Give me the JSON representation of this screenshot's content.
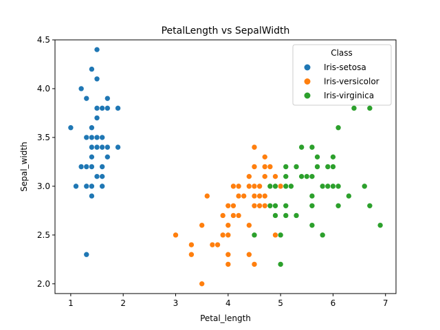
{
  "chart_data": {
    "type": "scatter",
    "title": "PetalLength vs SepalWidth",
    "xlabel": "Petal_length",
    "ylabel": "Sepal_width",
    "xlim": [
      0.7,
      7.2
    ],
    "ylim": [
      1.9,
      4.5
    ],
    "xticks": [
      1,
      2,
      3,
      4,
      5,
      6,
      7
    ],
    "yticks": [
      2.0,
      2.5,
      3.0,
      3.5,
      4.0,
      4.5
    ],
    "xtick_labels": [
      "1",
      "2",
      "3",
      "4",
      "5",
      "6",
      "7"
    ],
    "ytick_labels": [
      "2.0",
      "2.5",
      "3.0",
      "3.5",
      "4.0",
      "4.5"
    ],
    "grid": false,
    "legend": {
      "title": "Class",
      "placement": "top-right"
    },
    "series": [
      {
        "name": "Iris-setosa",
        "color": "#1f77b4",
        "points": [
          [
            1.0,
            3.6
          ],
          [
            1.1,
            3.0
          ],
          [
            1.2,
            3.2
          ],
          [
            1.2,
            4.0
          ],
          [
            1.3,
            3.0
          ],
          [
            1.3,
            3.2
          ],
          [
            1.3,
            3.5
          ],
          [
            1.3,
            3.9
          ],
          [
            1.3,
            2.3
          ],
          [
            1.4,
            2.9
          ],
          [
            1.4,
            3.0
          ],
          [
            1.4,
            3.2
          ],
          [
            1.4,
            3.3
          ],
          [
            1.4,
            3.4
          ],
          [
            1.4,
            3.5
          ],
          [
            1.4,
            3.6
          ],
          [
            1.4,
            4.2
          ],
          [
            1.5,
            3.1
          ],
          [
            1.5,
            3.4
          ],
          [
            1.5,
            3.5
          ],
          [
            1.5,
            3.7
          ],
          [
            1.5,
            3.8
          ],
          [
            1.5,
            4.1
          ],
          [
            1.5,
            4.4
          ],
          [
            1.6,
            3.0
          ],
          [
            1.6,
            3.1
          ],
          [
            1.6,
            3.2
          ],
          [
            1.6,
            3.4
          ],
          [
            1.6,
            3.5
          ],
          [
            1.6,
            3.8
          ],
          [
            1.7,
            3.3
          ],
          [
            1.7,
            3.4
          ],
          [
            1.7,
            3.8
          ],
          [
            1.7,
            3.9
          ],
          [
            1.9,
            3.4
          ],
          [
            1.9,
            3.8
          ]
        ]
      },
      {
        "name": "Iris-versicolor",
        "color": "#ff7f0e",
        "points": [
          [
            3.0,
            2.5
          ],
          [
            3.3,
            2.3
          ],
          [
            3.3,
            2.4
          ],
          [
            3.5,
            2.0
          ],
          [
            3.5,
            2.6
          ],
          [
            3.6,
            2.9
          ],
          [
            3.7,
            2.4
          ],
          [
            3.8,
            2.4
          ],
          [
            3.9,
            2.5
          ],
          [
            3.9,
            2.7
          ],
          [
            4.0,
            2.2
          ],
          [
            4.0,
            2.3
          ],
          [
            4.0,
            2.5
          ],
          [
            4.0,
            2.6
          ],
          [
            4.0,
            2.8
          ],
          [
            4.1,
            2.7
          ],
          [
            4.1,
            2.8
          ],
          [
            4.1,
            3.0
          ],
          [
            4.2,
            2.7
          ],
          [
            4.2,
            2.9
          ],
          [
            4.2,
            3.0
          ],
          [
            4.3,
            2.9
          ],
          [
            4.4,
            2.3
          ],
          [
            4.4,
            2.6
          ],
          [
            4.4,
            3.0
          ],
          [
            4.4,
            3.1
          ],
          [
            4.5,
            2.2
          ],
          [
            4.5,
            2.8
          ],
          [
            4.5,
            2.9
          ],
          [
            4.5,
            3.0
          ],
          [
            4.5,
            3.2
          ],
          [
            4.5,
            3.4
          ],
          [
            4.6,
            2.8
          ],
          [
            4.6,
            2.9
          ],
          [
            4.6,
            3.0
          ],
          [
            4.7,
            2.8
          ],
          [
            4.7,
            2.9
          ],
          [
            4.7,
            3.1
          ],
          [
            4.7,
            3.2
          ],
          [
            4.7,
            3.3
          ],
          [
            4.8,
            3.2
          ],
          [
            4.9,
            2.5
          ],
          [
            4.9,
            3.1
          ],
          [
            5.0,
            3.0
          ],
          [
            5.1,
            2.7
          ]
        ]
      },
      {
        "name": "Iris-virginica",
        "color": "#2ca02c",
        "points": [
          [
            4.5,
            2.5
          ],
          [
            4.8,
            2.8
          ],
          [
            4.8,
            3.0
          ],
          [
            4.9,
            2.7
          ],
          [
            4.9,
            2.8
          ],
          [
            4.9,
            3.0
          ],
          [
            5.0,
            2.2
          ],
          [
            5.0,
            2.5
          ],
          [
            5.1,
            2.7
          ],
          [
            5.1,
            2.8
          ],
          [
            5.1,
            3.0
          ],
          [
            5.1,
            3.1
          ],
          [
            5.1,
            3.2
          ],
          [
            5.2,
            3.0
          ],
          [
            5.3,
            3.2
          ],
          [
            5.3,
            2.7
          ],
          [
            5.4,
            3.1
          ],
          [
            5.4,
            3.4
          ],
          [
            5.5,
            3.1
          ],
          [
            5.6,
            2.6
          ],
          [
            5.6,
            2.8
          ],
          [
            5.6,
            2.9
          ],
          [
            5.6,
            3.1
          ],
          [
            5.6,
            3.4
          ],
          [
            5.7,
            3.2
          ],
          [
            5.7,
            3.3
          ],
          [
            5.8,
            2.5
          ],
          [
            5.8,
            3.0
          ],
          [
            5.9,
            3.0
          ],
          [
            5.9,
            3.2
          ],
          [
            6.0,
            3.0
          ],
          [
            6.0,
            3.2
          ],
          [
            6.0,
            3.3
          ],
          [
            6.1,
            2.8
          ],
          [
            6.1,
            3.0
          ],
          [
            6.1,
            3.6
          ],
          [
            6.3,
            2.9
          ],
          [
            6.4,
            3.8
          ],
          [
            6.6,
            3.0
          ],
          [
            6.7,
            2.8
          ],
          [
            6.7,
            3.8
          ],
          [
            6.9,
            2.6
          ]
        ]
      }
    ]
  }
}
